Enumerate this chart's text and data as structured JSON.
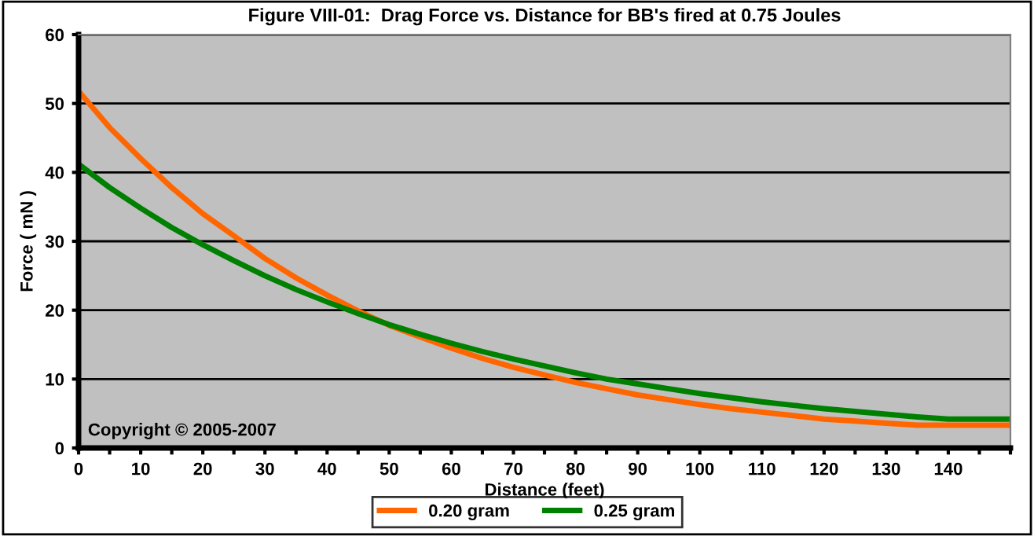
{
  "chart_data": {
    "type": "line",
    "title": "Figure VIII-01:  Drag Force vs. Distance for BB's fired at 0.75 Joules",
    "xlabel": "Distance (feet)",
    "ylabel": "Force ( mN )",
    "x": [
      0,
      5,
      10,
      15,
      20,
      25,
      30,
      35,
      40,
      45,
      50,
      55,
      60,
      65,
      70,
      75,
      80,
      85,
      90,
      95,
      100,
      105,
      110,
      115,
      120,
      125,
      130,
      135,
      140,
      145,
      150
    ],
    "series": [
      {
        "name": "0.20 gram",
        "color": "#ff6600",
        "values": [
          51.8,
          46.5,
          42,
          37.8,
          34,
          30.8,
          27.5,
          24.7,
          22.2,
          19.9,
          17.8,
          16.1,
          14.5,
          13,
          11.7,
          10.6,
          9.5,
          8.6,
          7.7,
          7,
          6.3,
          5.7,
          5.2,
          4.7,
          4.2,
          3.9,
          3.6,
          3.3,
          3.3,
          3.3,
          3.3
        ]
      },
      {
        "name": "0.25 gram",
        "color": "#008000",
        "values": [
          41.2,
          37.8,
          34.8,
          32,
          29.5,
          27.2,
          25,
          23,
          21.2,
          19.5,
          17.9,
          16.5,
          15.2,
          14,
          12.9,
          11.9,
          10.9,
          10,
          9.3,
          8.6,
          7.9,
          7.3,
          6.7,
          6.2,
          5.7,
          5.3,
          4.9,
          4.5,
          4.2,
          4.2,
          4.2
        ]
      }
    ],
    "xlim": [
      0,
      150
    ],
    "ylim": [
      0,
      60
    ],
    "xticks": [
      0,
      {
        "value": 5,
        "label": null
      },
      10,
      {
        "value": 15,
        "label": null
      },
      20,
      {
        "value": 25,
        "label": null
      },
      30,
      {
        "value": 35,
        "label": null
      },
      40,
      {
        "value": 45,
        "label": null
      },
      50,
      {
        "value": 55,
        "label": null
      },
      60,
      {
        "value": 65,
        "label": null
      },
      70,
      {
        "value": 75,
        "label": null
      },
      80,
      {
        "value": 85,
        "label": null
      },
      90,
      {
        "value": 95,
        "label": null
      },
      100,
      {
        "value": 105,
        "label": null
      },
      110,
      {
        "value": 115,
        "label": null
      },
      120,
      {
        "value": 125,
        "label": null
      },
      130,
      {
        "value": 135,
        "label": null
      },
      140,
      {
        "value": 145,
        "label": null
      },
      {
        "value": 150,
        "label": null
      }
    ],
    "yticks": [
      0,
      10,
      20,
      30,
      40,
      50,
      60
    ],
    "grid": "y",
    "legend": "bottom",
    "marker": "none",
    "line_style": "solid",
    "annotations": [
      "Copyright © 2005-2007"
    ]
  }
}
